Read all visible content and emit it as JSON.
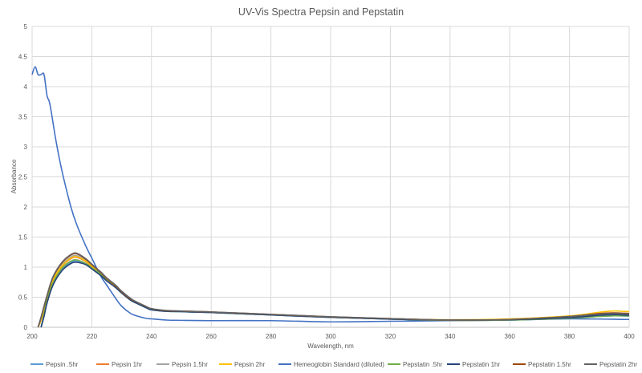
{
  "chart_data": {
    "type": "line",
    "title": "UV-Vis Spectra Pepsin and Pepstatin",
    "xlabel": "Wavelength, nm",
    "ylabel": "Absorbance",
    "xlim": [
      200,
      400
    ],
    "ylim": [
      0,
      5
    ],
    "xticks": [
      200,
      220,
      240,
      260,
      280,
      300,
      320,
      340,
      360,
      380,
      400
    ],
    "yticks": [
      0,
      0.5,
      1,
      1.5,
      2,
      2.5,
      3,
      3.5,
      4,
      4.5,
      5
    ],
    "grid": true,
    "legend": "bottom",
    "series": [
      {
        "name": "Pepsin .5hr",
        "color": "#5B9BD5",
        "x": [
          203,
          204,
          205,
          207,
          210,
          213,
          215,
          218,
          220,
          223,
          225,
          228,
          230,
          233,
          235,
          238,
          240,
          245,
          250,
          260,
          280,
          300,
          320,
          340,
          360,
          380,
          390,
          395,
          400
        ],
        "y": [
          0,
          0.2,
          0.42,
          0.72,
          0.96,
          1.08,
          1.1,
          1.05,
          0.98,
          0.87,
          0.78,
          0.66,
          0.57,
          0.45,
          0.4,
          0.33,
          0.29,
          0.265,
          0.26,
          0.245,
          0.205,
          0.165,
          0.135,
          0.115,
          0.12,
          0.15,
          0.18,
          0.19,
          0.185
        ]
      },
      {
        "name": "Pepsin 1hr",
        "color": "#ED7D31",
        "x": [
          202,
          203,
          205,
          207,
          210,
          213,
          215,
          218,
          220,
          223,
          225,
          228,
          230,
          233,
          235,
          238,
          240,
          245,
          250,
          260,
          280,
          300,
          320,
          340,
          360,
          380,
          390,
          395,
          400
        ],
        "y": [
          0,
          0.12,
          0.47,
          0.77,
          1.01,
          1.14,
          1.16,
          1.09,
          1.01,
          0.89,
          0.79,
          0.67,
          0.58,
          0.46,
          0.41,
          0.34,
          0.3,
          0.27,
          0.265,
          0.25,
          0.21,
          0.17,
          0.14,
          0.12,
          0.13,
          0.17,
          0.21,
          0.22,
          0.21
        ]
      },
      {
        "name": "Pepsin 1.5hr",
        "color": "#A5A5A5",
        "x": [
          202,
          203,
          205,
          207,
          210,
          213,
          215,
          218,
          220,
          223,
          225,
          228,
          230,
          233,
          235,
          238,
          240,
          245,
          250,
          260,
          280,
          300,
          320,
          340,
          360,
          380,
          390,
          395,
          400
        ],
        "y": [
          0,
          0.14,
          0.5,
          0.8,
          1.04,
          1.17,
          1.19,
          1.11,
          1.03,
          0.9,
          0.8,
          0.68,
          0.58,
          0.46,
          0.41,
          0.34,
          0.3,
          0.27,
          0.265,
          0.25,
          0.21,
          0.17,
          0.14,
          0.12,
          0.13,
          0.17,
          0.22,
          0.23,
          0.22
        ]
      },
      {
        "name": "Pepsin 2hr",
        "color": "#FFC000",
        "x": [
          202,
          203,
          205,
          207,
          210,
          213,
          215,
          218,
          220,
          223,
          225,
          228,
          230,
          233,
          235,
          238,
          240,
          245,
          250,
          260,
          280,
          300,
          320,
          340,
          360,
          380,
          390,
          395,
          400
        ],
        "y": [
          0,
          0.13,
          0.48,
          0.78,
          1.02,
          1.15,
          1.17,
          1.1,
          1.02,
          0.9,
          0.8,
          0.68,
          0.58,
          0.46,
          0.41,
          0.34,
          0.3,
          0.27,
          0.265,
          0.25,
          0.21,
          0.17,
          0.14,
          0.125,
          0.14,
          0.19,
          0.25,
          0.27,
          0.26
        ]
      },
      {
        "name": "Hemeoglobin Standard (diluted)",
        "color": "#4472C4",
        "x": [
          200,
          201,
          202,
          203,
          204,
          205,
          206,
          208,
          210,
          213,
          215,
          218,
          220,
          223,
          225,
          228,
          230,
          233,
          235,
          238,
          240,
          245,
          250,
          260,
          280,
          300,
          320,
          340,
          360,
          380,
          400
        ],
        "y": [
          4.2,
          4.33,
          4.2,
          4.2,
          4.2,
          3.85,
          3.7,
          3.1,
          2.6,
          2.0,
          1.7,
          1.35,
          1.15,
          0.85,
          0.7,
          0.48,
          0.35,
          0.23,
          0.19,
          0.15,
          0.14,
          0.12,
          0.115,
          0.11,
          0.11,
          0.09,
          0.1,
          0.11,
          0.12,
          0.14,
          0.13
        ]
      },
      {
        "name": "Pepstatin .5hr",
        "color": "#70AD47",
        "x": [
          203,
          204,
          205,
          207,
          210,
          213,
          215,
          218,
          220,
          223,
          225,
          228,
          230,
          233,
          235,
          238,
          240,
          245,
          250,
          260,
          280,
          300,
          320,
          340,
          360,
          380,
          390,
          395,
          400
        ],
        "y": [
          0,
          0.22,
          0.44,
          0.74,
          0.98,
          1.1,
          1.12,
          1.06,
          0.99,
          0.88,
          0.78,
          0.66,
          0.57,
          0.45,
          0.4,
          0.33,
          0.29,
          0.265,
          0.26,
          0.245,
          0.205,
          0.165,
          0.135,
          0.115,
          0.12,
          0.15,
          0.18,
          0.19,
          0.19
        ]
      },
      {
        "name": "Pepstatin 1hr",
        "color": "#264478",
        "x": [
          203,
          204,
          205,
          207,
          210,
          213,
          215,
          218,
          220,
          223,
          225,
          228,
          230,
          233,
          235,
          238,
          240,
          245,
          250,
          260,
          280,
          300,
          320,
          340,
          360,
          380,
          390,
          395,
          400
        ],
        "y": [
          0,
          0.18,
          0.4,
          0.7,
          0.94,
          1.06,
          1.08,
          1.04,
          0.97,
          0.86,
          0.77,
          0.66,
          0.57,
          0.45,
          0.4,
          0.33,
          0.29,
          0.265,
          0.26,
          0.245,
          0.205,
          0.165,
          0.135,
          0.12,
          0.125,
          0.16,
          0.2,
          0.21,
          0.2
        ]
      },
      {
        "name": "Pepstatin 1.5hr",
        "color": "#9E480E",
        "x": [
          202,
          203,
          205,
          207,
          210,
          213,
          215,
          218,
          220,
          223,
          225,
          228,
          230,
          233,
          235,
          238,
          240,
          245,
          250,
          260,
          280,
          300,
          320,
          340,
          360,
          380,
          390,
          395,
          400
        ],
        "y": [
          0,
          0.16,
          0.52,
          0.83,
          1.07,
          1.2,
          1.22,
          1.13,
          1.04,
          0.91,
          0.81,
          0.69,
          0.59,
          0.47,
          0.42,
          0.35,
          0.31,
          0.275,
          0.27,
          0.255,
          0.215,
          0.175,
          0.145,
          0.12,
          0.13,
          0.18,
          0.23,
          0.24,
          0.23
        ]
      },
      {
        "name": "Pepstatin 2hr",
        "color": "#636363",
        "x": [
          202,
          203,
          205,
          207,
          210,
          213,
          215,
          218,
          220,
          223,
          225,
          228,
          230,
          233,
          235,
          238,
          240,
          245,
          250,
          260,
          280,
          300,
          320,
          340,
          360,
          380,
          390,
          395,
          400
        ],
        "y": [
          0,
          0.17,
          0.53,
          0.84,
          1.08,
          1.21,
          1.23,
          1.14,
          1.05,
          0.92,
          0.82,
          0.7,
          0.6,
          0.48,
          0.42,
          0.35,
          0.31,
          0.28,
          0.27,
          0.255,
          0.215,
          0.175,
          0.145,
          0.12,
          0.13,
          0.18,
          0.22,
          0.23,
          0.22
        ]
      }
    ]
  }
}
